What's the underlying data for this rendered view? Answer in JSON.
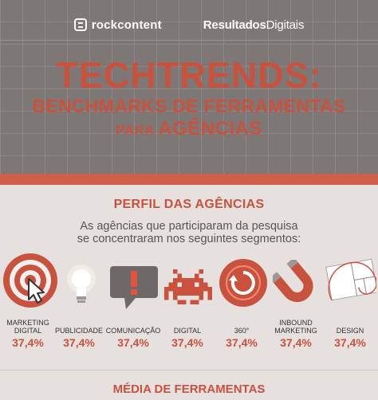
{
  "logos": {
    "rockcontent": "rockcontent",
    "resultados": "Resultados",
    "digitais": "Digitais"
  },
  "title": {
    "line1": "TECHTRENDS:",
    "line2": "BENCHMARKS DE FERRAMENTAS",
    "line3_small": "PARA",
    "line3_big": "AGÊNCIAS"
  },
  "section": {
    "title": "PERFIL DAS AGÊNCIAS",
    "subtitle_line1": "As agências que participaram da pesquisa",
    "subtitle_line2": "se concentraram  nos seguintes segmentos:"
  },
  "segments": [
    {
      "line1": "MARKETING",
      "line2": "DIGITAL",
      "value": "37,4%",
      "icon": "target-cursor-icon"
    },
    {
      "line1": "",
      "line2": "PUBLICIDADE",
      "value": "37,4%",
      "icon": "lightbulb-icon"
    },
    {
      "line1": "",
      "line2": "COMUNICAÇÃO",
      "value": "37,4%",
      "icon": "speech-bubble-exclamation-icon"
    },
    {
      "line1": "",
      "line2": "DIGITAL",
      "value": "37,4%",
      "icon": "space-invader-icon"
    },
    {
      "line1": "",
      "line2": "360°",
      "value": "37,4%",
      "icon": "circular-arrow-icon"
    },
    {
      "line1": "INBOUND",
      "line2": "MARKETING",
      "value": "37,4%",
      "icon": "magnet-icon"
    },
    {
      "line1": "",
      "line2": "DESIGN",
      "value": "37,4%",
      "icon": "golden-spiral-icon"
    }
  ],
  "next_section_title": "MÉDIA DE FERRAMENTAS",
  "colors": {
    "accent": "#c9523f",
    "header_bg": "#7d7876",
    "page_bg": "#e6e1df"
  }
}
